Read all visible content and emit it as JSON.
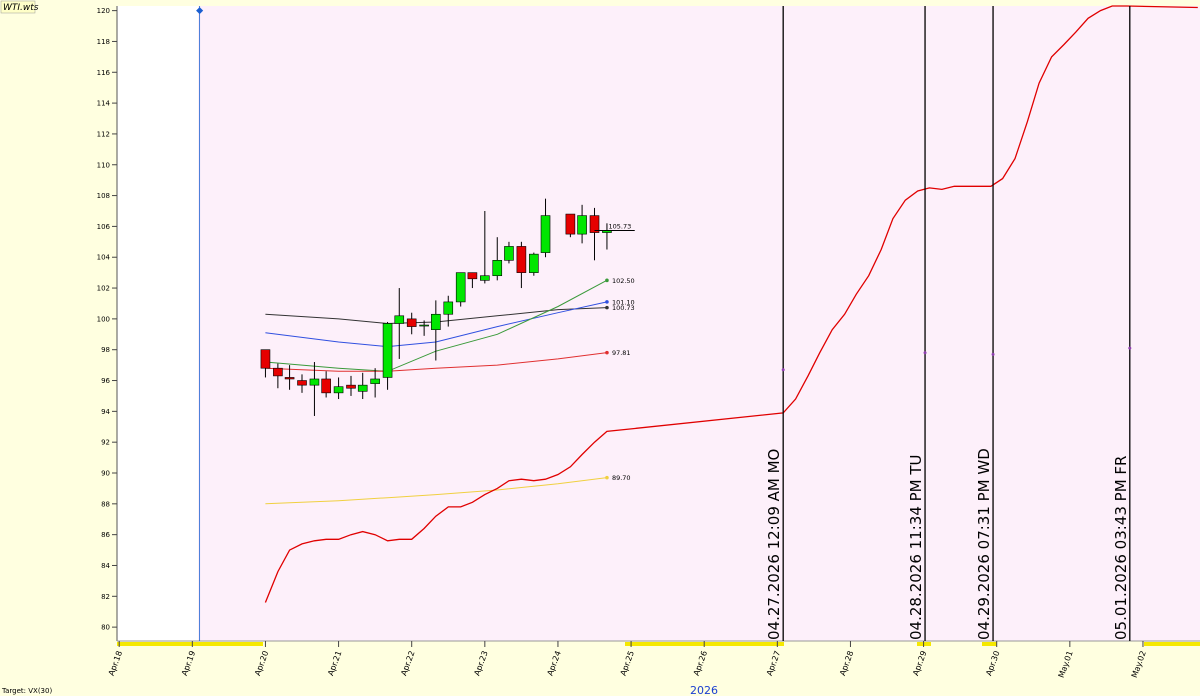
{
  "chart_data": {
    "type": "candlestick",
    "source_label": "WTI.wts",
    "target_label": "Target: VX(30)",
    "year_label": "2026",
    "xlim": [
      17.97,
      32.78
    ],
    "ylim": [
      79.1,
      120.3
    ],
    "yticks": [
      80,
      82,
      84,
      86,
      88,
      90,
      92,
      94,
      96,
      98,
      100,
      102,
      104,
      106,
      108,
      110,
      112,
      114,
      116,
      118,
      120
    ],
    "xticks": [
      {
        "value": 18,
        "label": "Apr.18"
      },
      {
        "value": 19,
        "label": "Apr.19"
      },
      {
        "value": 20,
        "label": "Apr.20"
      },
      {
        "value": 21,
        "label": "Apr.21"
      },
      {
        "value": 22,
        "label": "Apr.22"
      },
      {
        "value": 23,
        "label": "Apr.23"
      },
      {
        "value": 24,
        "label": "Apr.24"
      },
      {
        "value": 25,
        "label": "Apr.25"
      },
      {
        "value": 26,
        "label": "Apr.26"
      },
      {
        "value": 27,
        "label": "Apr.27"
      },
      {
        "value": 28,
        "label": "Apr.28"
      },
      {
        "value": 29,
        "label": "Apr.29"
      },
      {
        "value": 30,
        "label": "Apr.30"
      },
      {
        "value": 31,
        "label": "May.01"
      },
      {
        "value": 32,
        "label": "May.02"
      }
    ],
    "cursor": {
      "x": 19.1,
      "y": 120,
      "color": "#1a5fd0"
    },
    "candles": {
      "up_color": "#00e600",
      "down_color": "#e60000",
      "x": [
        20,
        20.17,
        20.33,
        20.5,
        20.67,
        20.83,
        21,
        21.17,
        21.33,
        21.5,
        21.67,
        21.83,
        22,
        22.17,
        22.33,
        22.5,
        22.67,
        22.83,
        23,
        23.17,
        23.33,
        23.5,
        23.67,
        23.83,
        24.17,
        24.33,
        24.5,
        24.67
      ],
      "open": [
        98.0,
        96.8,
        96.2,
        96.0,
        95.7,
        96.1,
        95.2,
        95.7,
        95.3,
        95.8,
        96.2,
        99.7,
        100.0,
        99.6,
        99.3,
        100.3,
        101.1,
        103.0,
        102.5,
        102.8,
        103.8,
        104.7,
        103.0,
        104.3,
        106.8,
        105.5,
        106.7,
        105.6
      ],
      "high": [
        98.0,
        97.1,
        97.0,
        96.4,
        97.2,
        96.6,
        96.2,
        96.3,
        96.5,
        96.8,
        99.8,
        102.0,
        100.4,
        99.9,
        101.2,
        101.5,
        103.0,
        103.0,
        107.0,
        105.3,
        105.0,
        105.0,
        104.3,
        107.8,
        106.8,
        107.4,
        107.2,
        106.2
      ],
      "low": [
        96.2,
        95.5,
        95.4,
        95.2,
        93.7,
        94.9,
        94.8,
        95.0,
        94.8,
        94.9,
        95.4,
        97.4,
        99.0,
        98.9,
        97.3,
        99.5,
        100.8,
        102.0,
        102.3,
        102.5,
        103.6,
        102.0,
        102.8,
        104.0,
        105.3,
        104.9,
        103.8,
        104.5
      ],
      "close": [
        96.8,
        96.3,
        96.1,
        95.7,
        96.1,
        95.2,
        95.6,
        95.5,
        95.7,
        96.1,
        99.7,
        100.2,
        99.5,
        99.6,
        100.3,
        101.1,
        103.0,
        102.6,
        102.8,
        103.8,
        104.7,
        103.0,
        104.2,
        106.7,
        105.5,
        106.7,
        105.6,
        105.73
      ]
    },
    "last_price": {
      "value": 105.73,
      "label": "105.73",
      "x": [
        24.5,
        25.05
      ]
    },
    "series": [
      {
        "color": "#333333",
        "x": [
          20,
          21,
          21.67,
          22.33,
          23.17,
          24,
          24.67
        ],
        "values": [
          100.3,
          100.0,
          99.7,
          99.8,
          100.2,
          100.6,
          100.73
        ],
        "end_label": "100.73"
      },
      {
        "color": "#3050e0",
        "x": [
          20,
          21,
          21.67,
          22.33,
          23.17,
          24,
          24.67
        ],
        "values": [
          99.1,
          98.5,
          98.2,
          98.5,
          99.5,
          100.4,
          101.1
        ],
        "end_label": "101.10"
      },
      {
        "color": "#3a9a3a",
        "x": [
          20,
          21,
          21.67,
          22.33,
          23.17,
          24,
          24.67
        ],
        "values": [
          97.2,
          96.8,
          96.6,
          97.9,
          99.0,
          100.8,
          102.5
        ],
        "end_label": "102.50"
      },
      {
        "color": "#e03030",
        "x": [
          20,
          21,
          21.67,
          22.33,
          23.17,
          24,
          24.67
        ],
        "values": [
          96.8,
          96.6,
          96.6,
          96.8,
          97.0,
          97.4,
          97.81
        ],
        "end_label": "97.81"
      },
      {
        "color": "#f0d040",
        "x": [
          20,
          21,
          21.67,
          22.33,
          23.17,
          24,
          24.67
        ],
        "values": [
          88.0,
          88.2,
          88.4,
          88.6,
          88.9,
          89.3,
          89.7
        ],
        "end_label": "89.70"
      }
    ],
    "projection": {
      "color": "#e00000",
      "x": [
        20,
        20.17,
        20.33,
        20.5,
        20.67,
        20.83,
        21,
        21.17,
        21.33,
        21.5,
        21.67,
        21.83,
        22,
        22.17,
        22.33,
        22.5,
        22.67,
        22.83,
        23,
        23.17,
        23.33,
        23.5,
        23.67,
        23.83,
        24,
        24.17,
        24.33,
        24.5,
        24.67,
        27.08,
        27.25,
        27.42,
        27.58,
        27.75,
        27.92,
        28.08,
        28.25,
        28.42,
        28.58,
        28.75,
        28.92,
        29.08,
        29.25,
        29.42,
        29.58,
        29.75,
        29.92,
        30.08,
        30.25,
        30.42,
        30.58,
        30.75,
        30.92,
        31.08,
        31.25,
        31.42,
        31.58,
        31.78,
        32.75
      ],
      "values": [
        81.6,
        83.6,
        85.0,
        85.4,
        85.6,
        85.7,
        85.7,
        86.0,
        86.2,
        86.0,
        85.6,
        85.7,
        85.7,
        86.4,
        87.2,
        87.8,
        87.8,
        88.1,
        88.6,
        89.0,
        89.5,
        89.6,
        89.5,
        89.6,
        89.9,
        90.4,
        91.2,
        92.0,
        92.7,
        93.9,
        94.8,
        96.3,
        97.8,
        99.3,
        100.3,
        101.6,
        102.8,
        104.5,
        106.5,
        107.7,
        108.3,
        108.5,
        108.4,
        108.6,
        108.6,
        108.6,
        108.6,
        109.1,
        110.4,
        112.8,
        115.3,
        117.0,
        117.8,
        118.6,
        119.5,
        120.0,
        120.3,
        120.3,
        120.2
      ]
    },
    "events": [
      {
        "x": 27.08,
        "label": "04.27.2026  12:09 AM MO",
        "marker": 96.7
      },
      {
        "x": 29.02,
        "label": "04.28.2026  11:34 PM TU",
        "marker": 97.8
      },
      {
        "x": 29.95,
        "label": "04.29.2026  07:31 PM WD",
        "marker": 97.7
      },
      {
        "x": 31.82,
        "label": "05.01.2026  03:43 PM FR",
        "marker": 98.1
      }
    ]
  }
}
